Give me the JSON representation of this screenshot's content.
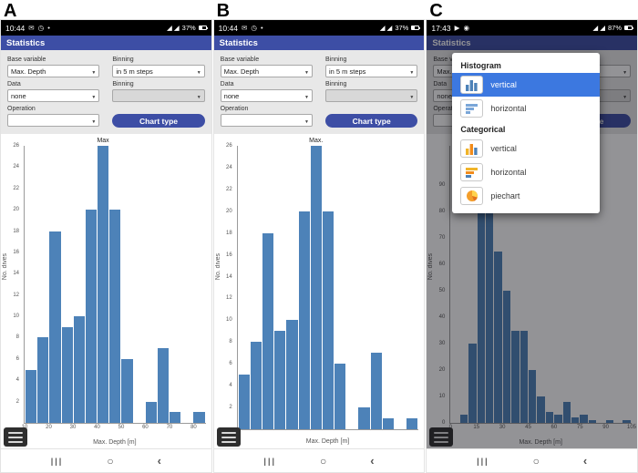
{
  "colors": {
    "accent": "#3d4ea5",
    "bar": "#4d82b8",
    "highlight": "#3c78e0"
  },
  "panels": [
    {
      "label": "A",
      "status": {
        "time": "10:44",
        "left_icons": "✉ ◷ •",
        "right_icons": "◢ ◢",
        "battery": "37%"
      },
      "header": "Statistics",
      "form": {
        "base_variable_label": "Base variable",
        "binning_label": "Binning",
        "base_variable_value": "Max. Depth",
        "binning_value": "in 5 m steps",
        "data_label": "Data",
        "binning2_label": "Binning",
        "data_value": "none",
        "binning2_value": "",
        "operation_label": "Operation",
        "operation_value": "",
        "chart_type_button": "Chart type"
      },
      "nav": {
        "recents": "|||",
        "home": "○",
        "back": "‹"
      }
    },
    {
      "label": "B",
      "status": {
        "time": "10:44",
        "left_icons": "✉ ◷ •",
        "right_icons": "◢ ◢",
        "battery": "37%"
      },
      "header": "Statistics",
      "form": {
        "base_variable_label": "Base variable",
        "binning_label": "Binning",
        "base_variable_value": "Max. Depth",
        "binning_value": "in 5 m steps",
        "data_label": "Data",
        "binning2_label": "Binning",
        "data_value": "none",
        "binning2_value": "",
        "operation_label": "Operation",
        "operation_value": "",
        "chart_type_button": "Chart type"
      },
      "nav": {
        "recents": "|||",
        "home": "○",
        "back": "‹"
      }
    },
    {
      "label": "C",
      "status": {
        "time": "17:43",
        "left_icons": "▶ ◉",
        "right_icons": "◢ ◢",
        "battery": "87%"
      },
      "header": "Statistics",
      "form": {
        "base_variable_label": "Base variable",
        "binning_label": "Binning",
        "base_variable_value": "Max. Depth",
        "binning_value": "in 5 m steps",
        "data_label": "Data",
        "binning2_label": "Binning",
        "data_value": "none",
        "binning2_value": "",
        "operation_label": "Operation",
        "operation_value": "",
        "chart_type_button": "Chart type"
      },
      "nav": {
        "recents": "|||",
        "home": "○",
        "back": "‹"
      },
      "popup": {
        "histogram_header": "Histogram",
        "items": [
          {
            "label": "vertical",
            "icon": "histogram-vertical-icon",
            "selected": true
          },
          {
            "label": "horizontal",
            "icon": "histogram-horizontal-icon",
            "selected": false
          }
        ],
        "categorical_header": "Categorical",
        "cat_items": [
          {
            "label": "vertical",
            "icon": "categorical-vertical-icon"
          },
          {
            "label": "horizontal",
            "icon": "categorical-horizontal-icon"
          },
          {
            "label": "piechart",
            "icon": "piechart-icon"
          }
        ]
      }
    }
  ],
  "chart_data": [
    {
      "type": "bar",
      "title": "",
      "xlabel": "Max. Depth [m]",
      "ylabel": "No. dives",
      "bin_width": 5,
      "x_start": 10,
      "values": [
        5,
        8,
        18,
        9,
        10,
        20,
        26,
        20,
        6,
        0,
        2,
        7,
        1,
        0,
        1
      ],
      "xticks": [
        10,
        20,
        30,
        40,
        50,
        60,
        70,
        80
      ],
      "xlim": [
        10,
        85
      ],
      "yticks": [
        2,
        4,
        6,
        8,
        10,
        12,
        14,
        16,
        18,
        20,
        22,
        24,
        26
      ],
      "ylim": [
        0,
        26
      ],
      "annotation": "Max",
      "bar_color": "#4d82b8",
      "grid": false,
      "legend": false
    },
    {
      "type": "bar",
      "title": "",
      "xlabel": "Max. Depth [m]",
      "ylabel": "No. dives",
      "bin_width": 5,
      "x_start": 10,
      "values": [
        5,
        8,
        18,
        9,
        10,
        20,
        26,
        20,
        6,
        0,
        2,
        7,
        1,
        0,
        1
      ],
      "xticks": [],
      "xlim": [
        10,
        85
      ],
      "yticks": [
        2,
        4,
        6,
        8,
        10,
        12,
        14,
        16,
        18,
        20,
        22,
        24,
        26
      ],
      "ylim": [
        0,
        26
      ],
      "annotation": "Max.",
      "bar_color": "#4d82b8",
      "grid": false,
      "legend": false
    },
    {
      "type": "bar",
      "title": "",
      "xlabel": "Max. Depth [m]",
      "ylabel": "No. dives",
      "bin_width": 5,
      "x_start": 0,
      "values": [
        0,
        3,
        30,
        100,
        90,
        65,
        50,
        35,
        35,
        20,
        10,
        4,
        3,
        8,
        2,
        3,
        1,
        0,
        1,
        0,
        1
      ],
      "xticks": [
        0,
        15,
        30,
        45,
        60,
        75,
        90,
        105
      ],
      "xlim": [
        0,
        105
      ],
      "yticks": [
        0,
        10,
        20,
        30,
        40,
        50,
        60,
        70,
        80,
        90
      ],
      "ylim": [
        0,
        105
      ],
      "annotation": "",
      "bar_color": "#4d82b8",
      "grid": false,
      "legend": false
    }
  ]
}
